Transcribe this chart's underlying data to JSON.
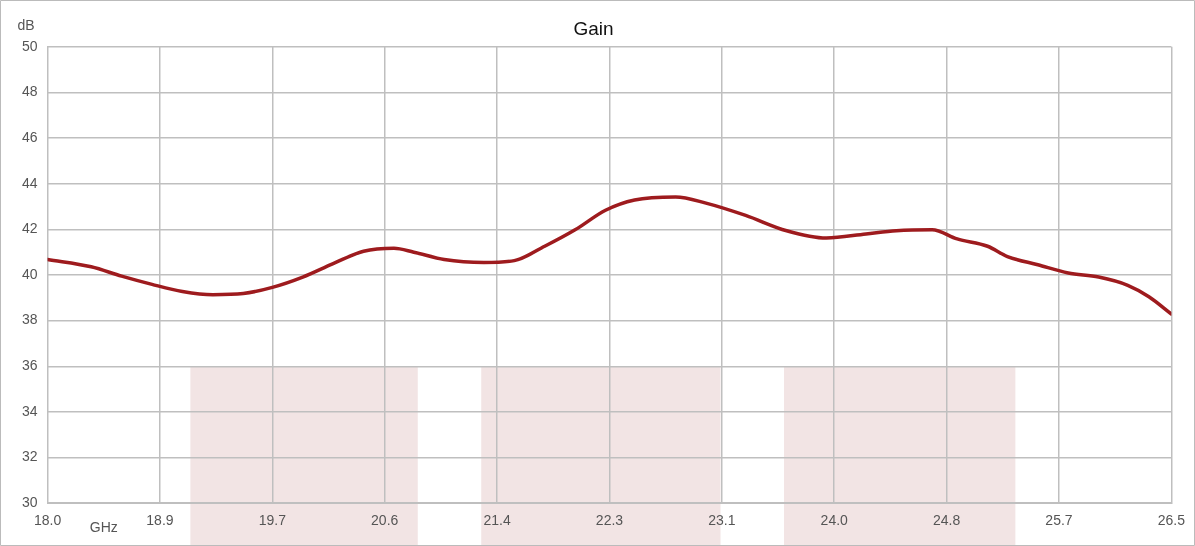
{
  "chart_data": {
    "type": "line",
    "title": "Gain",
    "xlabel": "GHz",
    "ylabel": "dB",
    "x": [
      18.0,
      18.33,
      18.56,
      18.79,
      19.02,
      19.25,
      19.48,
      19.7,
      19.93,
      20.16,
      20.39,
      20.62,
      20.77,
      21.0,
      21.3,
      21.53,
      21.76,
      21.99,
      22.22,
      22.44,
      22.75,
      22.98,
      23.28,
      23.59,
      23.89,
      24.19,
      24.42,
      24.69,
      24.88,
      25.11,
      25.26,
      25.49,
      25.72,
      25.95,
      26.17,
      26.33,
      26.5
    ],
    "series": [
      {
        "color": "#9e1b1e",
        "values": [
          40.68,
          40.36,
          39.95,
          39.59,
          39.28,
          39.14,
          39.19,
          39.46,
          39.91,
          40.5,
          41.04,
          41.17,
          41.0,
          40.68,
          40.55,
          40.63,
          41.26,
          41.98,
          42.84,
          43.29,
          43.42,
          43.15,
          42.61,
          41.94,
          41.62,
          41.8,
          41.94,
          41.98,
          41.58,
          41.26,
          40.81,
          40.45,
          40.09,
          39.91,
          39.55,
          39.05,
          38.29
        ]
      }
    ],
    "xlim": [
      18.0,
      26.5
    ],
    "xticks": [
      {
        "value": 18.0,
        "label": "18.0"
      },
      {
        "value": 18.85,
        "label": "18.9"
      },
      19.7,
      {
        "value": 20.55,
        "label": "20.6"
      },
      21.4,
      {
        "value": 22.25,
        "label": "22.3"
      },
      23.1,
      {
        "value": 23.95,
        "label": "24.0"
      },
      24.8,
      {
        "value": 25.65,
        "label": "25.7"
      },
      26.5
    ],
    "ylim": [
      30,
      50
    ],
    "yticks": [
      30,
      32,
      34,
      36,
      38,
      40,
      42,
      44,
      46,
      48,
      50
    ],
    "bands": [
      {
        "axis": "x",
        "from": 19.08,
        "to": 20.8,
        "color": "#f2e4e4"
      },
      {
        "axis": "x",
        "from": 21.28,
        "to": 23.09,
        "color": "#f2e4e4"
      },
      {
        "axis": "x",
        "from": 23.57,
        "to": 25.32,
        "color": "#f2e4e4"
      }
    ],
    "grid": true,
    "legend": false,
    "marker": "none",
    "line_style": "solid"
  }
}
